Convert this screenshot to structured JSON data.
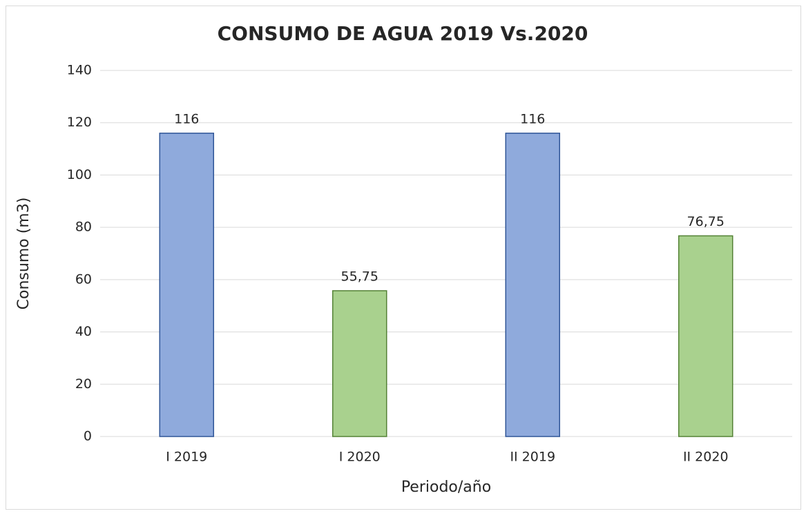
{
  "chart_data": {
    "type": "bar",
    "title": "CONSUMO DE AGUA 2019 Vs.2020",
    "x_label": "Periodo/año",
    "y_label": "Consumo (m3)",
    "categories": [
      "I 2019",
      "I 2020",
      "II 2019",
      "II 2020"
    ],
    "values": [
      116,
      55.75,
      116,
      76.75
    ],
    "value_labels": [
      "116",
      "55,75",
      "116",
      "76,75"
    ],
    "colors": [
      "#8faadc",
      "#a9d18e",
      "#8faadc",
      "#a9d18e"
    ],
    "edge_colors": [
      "#2f5597",
      "#548235",
      "#2f5597",
      "#548235"
    ],
    "ylim": [
      0,
      140
    ],
    "yticks": [
      0,
      20,
      40,
      60,
      80,
      100,
      120,
      140
    ],
    "grid": true
  }
}
